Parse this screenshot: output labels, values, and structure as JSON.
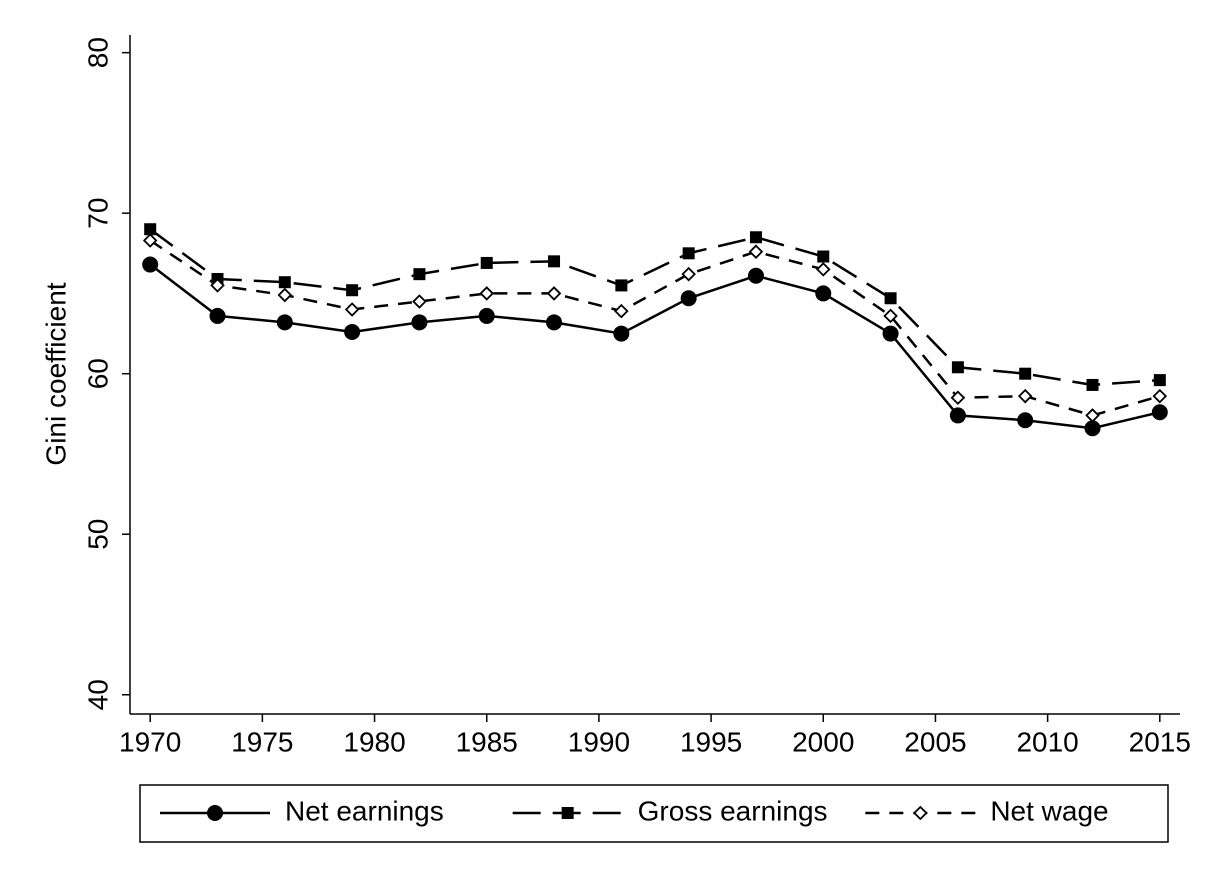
{
  "chart_data": {
    "type": "line",
    "y_label": "Gini coefficient",
    "x": [
      1970,
      1973,
      1976,
      1979,
      1982,
      1985,
      1988,
      1991,
      1994,
      1997,
      2000,
      2003,
      2006,
      2009,
      2012,
      2015
    ],
    "series": [
      {
        "name": "Net earnings",
        "color": "#000000",
        "marker": "circle",
        "dash": "solid",
        "values": [
          66.8,
          63.6,
          63.2,
          62.6,
          63.2,
          63.6,
          63.2,
          62.5,
          64.7,
          66.1,
          65.0,
          62.5,
          57.4,
          57.1,
          56.6,
          57.6
        ]
      },
      {
        "name": "Gross earnings",
        "color": "#000000",
        "marker": "square",
        "dash": "long",
        "values": [
          69.0,
          65.9,
          65.7,
          65.2,
          66.2,
          66.9,
          67.0,
          65.5,
          67.5,
          68.5,
          67.3,
          64.7,
          60.4,
          60.0,
          59.3,
          59.6
        ]
      },
      {
        "name": "Net wage",
        "color": "#000000",
        "marker": "diamond",
        "dash": "short",
        "values": [
          68.3,
          65.5,
          64.9,
          64.0,
          64.5,
          65.0,
          65.0,
          63.9,
          66.2,
          67.6,
          66.5,
          63.6,
          58.5,
          58.6,
          57.4,
          58.6
        ]
      }
    ],
    "xlim": [
      1969.1,
      2015.9
    ],
    "ylim": [
      38.8,
      81.1
    ],
    "xticks": [
      1970,
      1975,
      1980,
      1985,
      1990,
      1995,
      2000,
      2005,
      2010,
      2015
    ],
    "yticks": [
      40,
      50,
      60,
      70,
      80
    ],
    "legend": "bottom"
  }
}
